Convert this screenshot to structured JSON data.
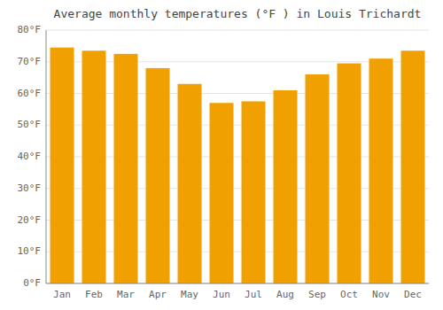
{
  "chart_data": {
    "type": "bar",
    "title": "Average monthly temperatures (°F ) in Louis Trichardt",
    "categories": [
      "Jan",
      "Feb",
      "Mar",
      "Apr",
      "May",
      "Jun",
      "Jul",
      "Aug",
      "Sep",
      "Oct",
      "Nov",
      "Dec"
    ],
    "values": [
      74.5,
      73.5,
      72.5,
      68,
      63,
      57,
      57.5,
      61,
      66,
      69.5,
      71,
      73.5
    ],
    "color": "#F0A000",
    "ylim": [
      0,
      80
    ],
    "yticks": [
      {
        "value": 0,
        "label": "0°F"
      },
      {
        "value": 10,
        "label": "10°F"
      },
      {
        "value": 20,
        "label": "20°F"
      },
      {
        "value": 30,
        "label": "30°F"
      },
      {
        "value": 40,
        "label": "40°F"
      },
      {
        "value": 50,
        "label": "50°F"
      },
      {
        "value": 60,
        "label": "60°F"
      },
      {
        "value": 70,
        "label": "70°F"
      },
      {
        "value": 80,
        "label": "80°F"
      }
    ],
    "grid": true
  }
}
